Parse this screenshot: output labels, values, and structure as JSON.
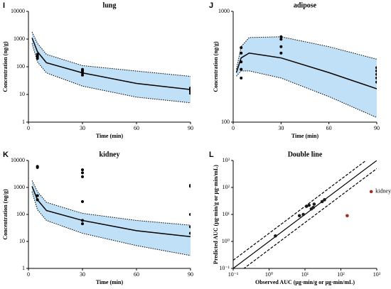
{
  "chart_data": [
    {
      "type": "line",
      "panel": "I",
      "title": "lung",
      "xlabel": "Time (min)",
      "ylabel": "Concentration (ng/g)",
      "xlim": [
        0,
        90
      ],
      "xticks": [
        0,
        30,
        60,
        90
      ],
      "ylim": [
        1,
        10000
      ],
      "yticks": [
        1,
        10,
        100,
        1000,
        10000
      ],
      "log_y": true,
      "band_color": "#bfe0f7",
      "x": [
        2,
        5,
        10,
        30,
        60,
        90
      ],
      "series": [
        {
          "style": "solid",
          "color": "#000000",
          "values": [
            1100,
            350,
            140,
            60,
            25,
            15
          ]
        },
        {
          "style": "dotted",
          "color": "#000000",
          "values": [
            1800,
            700,
            280,
            110,
            70,
            45
          ]
        },
        {
          "style": "dotted",
          "color": "#000000",
          "values": [
            700,
            150,
            60,
            20,
            8,
            5
          ]
        }
      ],
      "observed": {
        "color": "#000000",
        "x": [
          5,
          5,
          5,
          5,
          30,
          30,
          30,
          30,
          90,
          90,
          90,
          90
        ],
        "values": [
          200,
          230,
          250,
          280,
          50,
          60,
          70,
          80,
          11,
          13,
          15,
          17
        ]
      }
    },
    {
      "type": "line",
      "panel": "J",
      "title": "adipose",
      "xlabel": "Time (min)",
      "ylabel": "Concentration (ng/g)",
      "xlim": [
        0,
        90
      ],
      "xticks": [
        0,
        30,
        60,
        90
      ],
      "ylim": [
        100,
        1000
      ],
      "yticks": [
        100,
        1000
      ],
      "log_y": true,
      "band_color": "#bfe0f7",
      "x": [
        2,
        5,
        10,
        30,
        60,
        90
      ],
      "series": [
        {
          "style": "solid",
          "color": "#000000",
          "values": [
            280,
            380,
            420,
            380,
            280,
            200
          ]
        },
        {
          "style": "dotted",
          "color": "#000000",
          "values": [
            300,
            480,
            580,
            590,
            480,
            370
          ]
        },
        {
          "style": "dotted",
          "color": "#000000",
          "values": [
            260,
            290,
            290,
            250,
            170,
            110
          ]
        }
      ],
      "observed": {
        "color": "#000000",
        "x": [
          5,
          5,
          5,
          5,
          5,
          30,
          30,
          30,
          30,
          90,
          90,
          90,
          90,
          90
        ],
        "values": [
          250,
          300,
          350,
          420,
          470,
          420,
          480,
          560,
          590,
          230,
          250,
          270,
          290,
          310
        ]
      }
    },
    {
      "type": "line",
      "panel": "K",
      "title": "kidney",
      "xlabel": "Time (min)",
      "ylabel": "Concentration (ng/g)",
      "xlim": [
        0,
        90
      ],
      "xticks": [
        0,
        30,
        60,
        90
      ],
      "ylim": [
        1,
        10000
      ],
      "yticks": [
        1,
        10,
        100,
        1000,
        10000
      ],
      "log_y": true,
      "band_color": "#bfe0f7",
      "x": [
        2,
        5,
        10,
        30,
        60,
        90
      ],
      "series": [
        {
          "style": "solid",
          "color": "#000000",
          "values": [
            1100,
            350,
            140,
            60,
            25,
            15
          ]
        },
        {
          "style": "dotted",
          "color": "#000000",
          "values": [
            1800,
            700,
            280,
            110,
            60,
            40
          ]
        },
        {
          "style": "dotted",
          "color": "#000000",
          "values": [
            700,
            150,
            60,
            20,
            7,
            3
          ]
        }
      ],
      "observed": {
        "color": "#000000",
        "x": [
          5,
          5,
          5,
          5,
          30,
          30,
          30,
          30,
          30,
          30,
          90,
          90,
          90,
          90,
          90
        ],
        "values": [
          6000,
          5500,
          500,
          350,
          4500,
          3500,
          2500,
          300,
          60,
          45,
          1200,
          1100,
          100,
          35,
          20
        ]
      }
    },
    {
      "type": "scatter",
      "panel": "L",
      "title": "Double line",
      "xlabel": "Observed AUC (μg·min/g or μg·min/mL)",
      "ylabel": "Predicted AUC (μg·min/g or μg·min/mL)",
      "log_x": true,
      "log_y": true,
      "xlim": [
        0.1,
        1000
      ],
      "xticks": [
        {
          "value": 0.1,
          "label": "10⁻¹"
        },
        {
          "value": 1,
          "label": "10⁰"
        },
        {
          "value": 10,
          "label": "10¹"
        },
        {
          "value": 100,
          "label": "10²"
        },
        {
          "value": 1000,
          "label": "10³"
        }
      ],
      "ylim": [
        0.1,
        1000
      ],
      "yticks": [
        {
          "value": 0.1,
          "label": "10⁻¹"
        },
        {
          "value": 1,
          "label": "10⁰"
        },
        {
          "value": 10,
          "label": "10¹"
        },
        {
          "value": 100,
          "label": "10²"
        },
        {
          "value": 1000,
          "label": "10³"
        }
      ],
      "reference_lines": [
        {
          "fold": 1,
          "style": "solid"
        },
        {
          "fold": 2,
          "style": "dashed"
        },
        {
          "fold": 0.5,
          "style": "dashed"
        }
      ],
      "series": [
        {
          "color": "#1a1a1a",
          "x": [
            1.5,
            7,
            9,
            11,
            13,
            15,
            17,
            18,
            30,
            35
          ],
          "values": [
            1.6,
            9,
            10,
            20,
            22,
            16,
            18,
            24,
            30,
            35
          ]
        },
        {
          "name": "kidney",
          "color": "#a52a2a",
          "x": [
            150,
            700
          ],
          "values": [
            9,
            70
          ]
        }
      ]
    }
  ]
}
